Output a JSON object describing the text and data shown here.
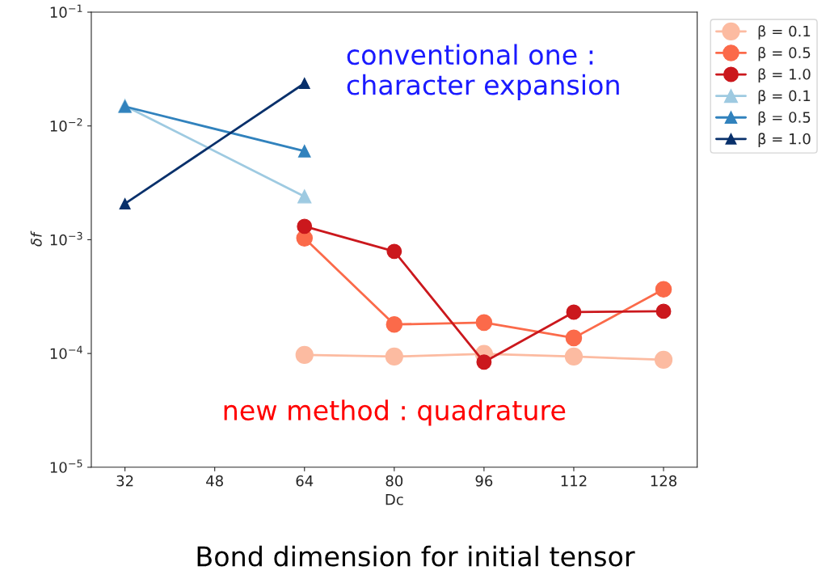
{
  "chart_data": {
    "type": "line",
    "xlabel": "Dc",
    "ylabel": "δf",
    "x": [
      32,
      48,
      64,
      80,
      96,
      112,
      128
    ],
    "log": "y",
    "xlim": [
      26,
      134
    ],
    "ylim": [
      1e-05,
      0.1
    ],
    "xticks": [
      32,
      48,
      64,
      80,
      96,
      112,
      128
    ],
    "yticks": [
      {
        "value": 1e-05,
        "label": "10$^{−5}$"
      },
      {
        "value": 0.0001,
        "label": "10$^{−4}$"
      },
      {
        "value": 0.001,
        "label": "10$^{−3}$"
      },
      {
        "value": 0.01,
        "label": "10$^{−2}$"
      },
      {
        "value": 0.1,
        "label": "10$^{−1}$"
      }
    ],
    "grid": false,
    "legend": "top right",
    "series": [
      {
        "name": "β = 0.1",
        "color": "#fcbba1",
        "marker": "circle",
        "values": [
          null,
          null,
          9.7e-05,
          9.4e-05,
          9.9e-05,
          9.4e-05,
          8.8e-05
        ]
      },
      {
        "name": "β = 0.5",
        "color": "#fb6a4a",
        "marker": "circle",
        "values": [
          null,
          null,
          0.00103,
          0.00018,
          0.000187,
          0.000137,
          0.000366
        ]
      },
      {
        "name": "β = 1.0",
        "color": "#cb181d",
        "marker": "circle",
        "values": [
          null,
          null,
          0.00131,
          0.00079,
          8.4e-05,
          0.000231,
          0.000235
        ]
      },
      {
        "name": "β = 0.1",
        "color": "#9ecae1",
        "marker": "triangle",
        "values": [
          0.015,
          null,
          0.0024,
          null,
          null,
          null,
          null
        ]
      },
      {
        "name": "β = 0.5",
        "color": "#3182bd",
        "marker": "triangle",
        "values": [
          0.0148,
          null,
          0.006,
          null,
          null,
          null,
          null
        ]
      },
      {
        "name": "β = 1.0",
        "color": "#08306b",
        "marker": "triangle",
        "values": [
          0.00207,
          null,
          0.0237,
          null,
          null,
          null,
          null
        ]
      }
    ],
    "annotations": [
      "conventional one :\ncharacter expansion",
      "new method : quadrature",
      "Bond dimension for initial tensor"
    ]
  }
}
